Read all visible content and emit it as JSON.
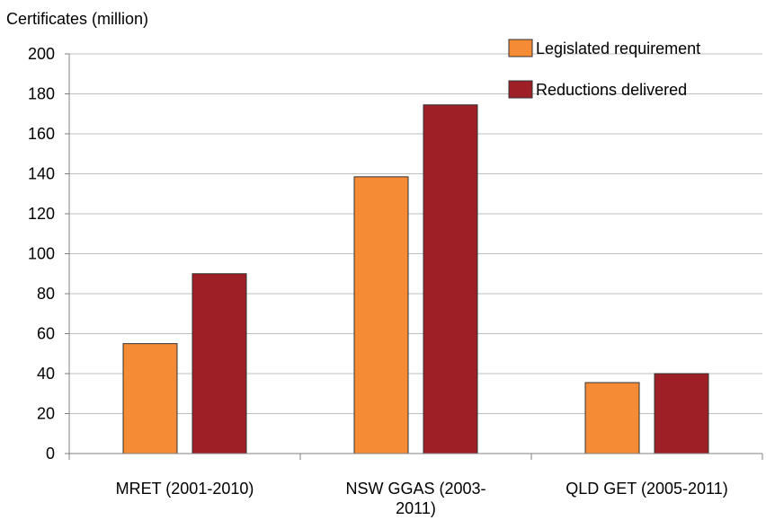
{
  "chart_data": {
    "type": "bar",
    "title": "",
    "ylabel": "Certificates (million)",
    "xlabel": "",
    "categories": [
      [
        "MRET (2001-2010)"
      ],
      [
        "NSW GGAS (2003-",
        "2011)"
      ],
      [
        "QLD GET (2005-2011)"
      ]
    ],
    "series": [
      {
        "name": "Legislated requirement",
        "color": "#F58B35",
        "values": [
          55,
          138.5,
          35.5
        ]
      },
      {
        "name": "Reductions delivered",
        "color": "#9E1F26",
        "values": [
          90,
          174.5,
          40
        ]
      }
    ],
    "ylim": [
      0,
      200
    ],
    "yticks": [
      0,
      20,
      40,
      60,
      80,
      100,
      120,
      140,
      160,
      180,
      200
    ],
    "grid": true,
    "gridColor": "#BFBFBF",
    "legend": "top-right"
  }
}
